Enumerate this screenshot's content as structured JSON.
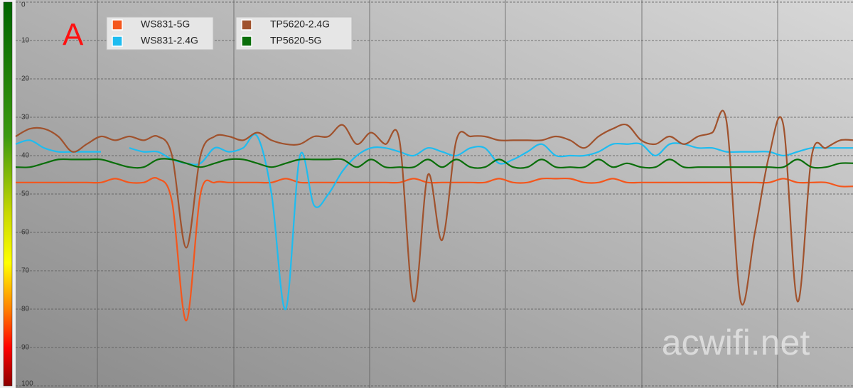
{
  "chart_data": {
    "type": "line",
    "annotations": [
      "A",
      "acwifi.net"
    ],
    "ylim": [
      0,
      100
    ],
    "y_inverted": true,
    "yticks": [
      0,
      10,
      20,
      30,
      40,
      50,
      60,
      70,
      80,
      90,
      100
    ],
    "grid": true,
    "series": [
      {
        "name": "WS831-5G",
        "color": "#f4561c",
        "values": [
          47,
          47,
          47,
          47,
          47,
          47,
          47,
          46,
          47,
          47,
          46,
          52,
          83,
          50,
          47,
          47,
          47,
          47,
          47,
          46,
          47,
          47,
          47,
          47,
          47,
          47,
          47,
          47,
          46,
          47,
          47,
          47,
          47,
          47,
          46,
          47,
          47,
          46,
          46,
          46,
          47,
          47,
          46,
          47,
          47,
          47,
          47,
          47,
          47,
          47,
          47,
          47,
          47,
          47,
          46,
          47,
          47,
          47,
          48,
          48
        ]
      },
      {
        "name": "WS831-2.4G",
        "color": "#1ebcf0",
        "values": [
          37,
          36,
          38,
          39,
          39,
          39,
          39,
          null,
          38,
          39,
          39,
          41,
          42,
          42,
          38,
          39,
          38,
          35,
          50,
          80,
          40,
          53,
          50,
          44,
          40,
          38,
          38,
          39,
          40,
          38,
          39,
          40,
          38,
          38,
          42,
          41,
          39,
          37,
          40,
          40,
          40,
          39,
          37,
          37,
          37,
          40,
          37,
          37,
          38,
          38,
          39,
          39,
          39,
          39,
          40,
          39,
          38,
          38,
          38,
          38
        ]
      },
      {
        "name": "TP5620-2.4G",
        "color": "#a0522d",
        "values": [
          35,
          33,
          33,
          35,
          39,
          37,
          35,
          36,
          35,
          36,
          35,
          40,
          64,
          40,
          35,
          35,
          36,
          34,
          36,
          37,
          37,
          35,
          35,
          32,
          37,
          34,
          37,
          36,
          78,
          45,
          62,
          36,
          35,
          35,
          36,
          36,
          36,
          36,
          35,
          36,
          38,
          35,
          33,
          32,
          36,
          37,
          35,
          37,
          35,
          34,
          31,
          78,
          60,
          40,
          32,
          78,
          40,
          38,
          36,
          36
        ]
      },
      {
        "name": "TP5620-5G",
        "color": "#0a6e0a",
        "values": [
          43,
          43,
          42,
          41,
          41,
          41,
          41,
          42,
          43,
          43,
          41,
          41,
          42,
          43,
          42,
          41,
          41,
          42,
          43,
          42,
          41,
          41,
          41,
          41,
          43,
          41,
          43,
          43,
          43,
          41,
          43,
          41,
          43,
          43,
          41,
          43,
          43,
          41,
          43,
          43,
          43,
          41,
          43,
          42,
          43,
          43,
          41,
          43,
          43,
          43,
          43,
          43,
          43,
          43,
          43,
          41,
          43,
          43,
          42,
          42
        ]
      }
    ]
  }
}
